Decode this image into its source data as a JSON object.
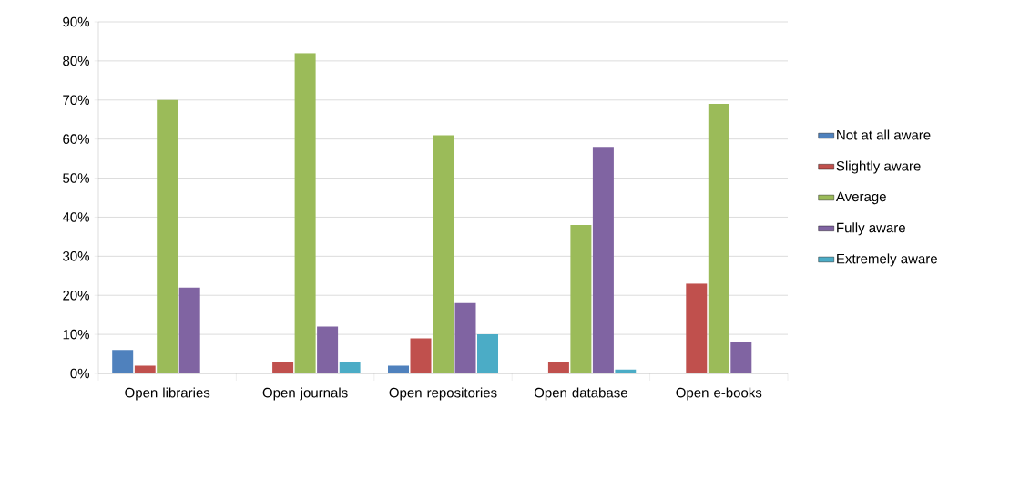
{
  "chart_data": {
    "type": "bar",
    "categories": [
      "Open libraries",
      "Open journals",
      "Open repositories",
      "Open database",
      "Open e-books"
    ],
    "series": [
      {
        "name": "Not at all aware",
        "color": "#4f81bd",
        "values": [
          6,
          null,
          2,
          null,
          null
        ]
      },
      {
        "name": "Slightly aware",
        "color": "#c0504d",
        "values": [
          2,
          3,
          9,
          3,
          23
        ]
      },
      {
        "name": "Average",
        "color": "#9bbb59",
        "values": [
          70,
          82,
          61,
          38,
          69
        ]
      },
      {
        "name": "Fully aware",
        "color": "#8064a2",
        "values": [
          22,
          12,
          18,
          58,
          8
        ]
      },
      {
        "name": "Extremely aware",
        "color": "#4bacc6",
        "values": [
          null,
          3,
          10,
          1,
          null
        ]
      }
    ],
    "ylim": [
      0,
      90
    ],
    "yticks": [
      {
        "value": 0,
        "label": "0%"
      },
      {
        "value": 10,
        "label": "10%"
      },
      {
        "value": 20,
        "label": "20%"
      },
      {
        "value": 30,
        "label": "30%"
      },
      {
        "value": 40,
        "label": "40%"
      },
      {
        "value": 50,
        "label": "50%"
      },
      {
        "value": 60,
        "label": "60%"
      },
      {
        "value": 70,
        "label": "70%"
      },
      {
        "value": 80,
        "label": "80%"
      },
      {
        "value": 90,
        "label": "90%"
      }
    ],
    "grid": "y",
    "legend": "right"
  }
}
